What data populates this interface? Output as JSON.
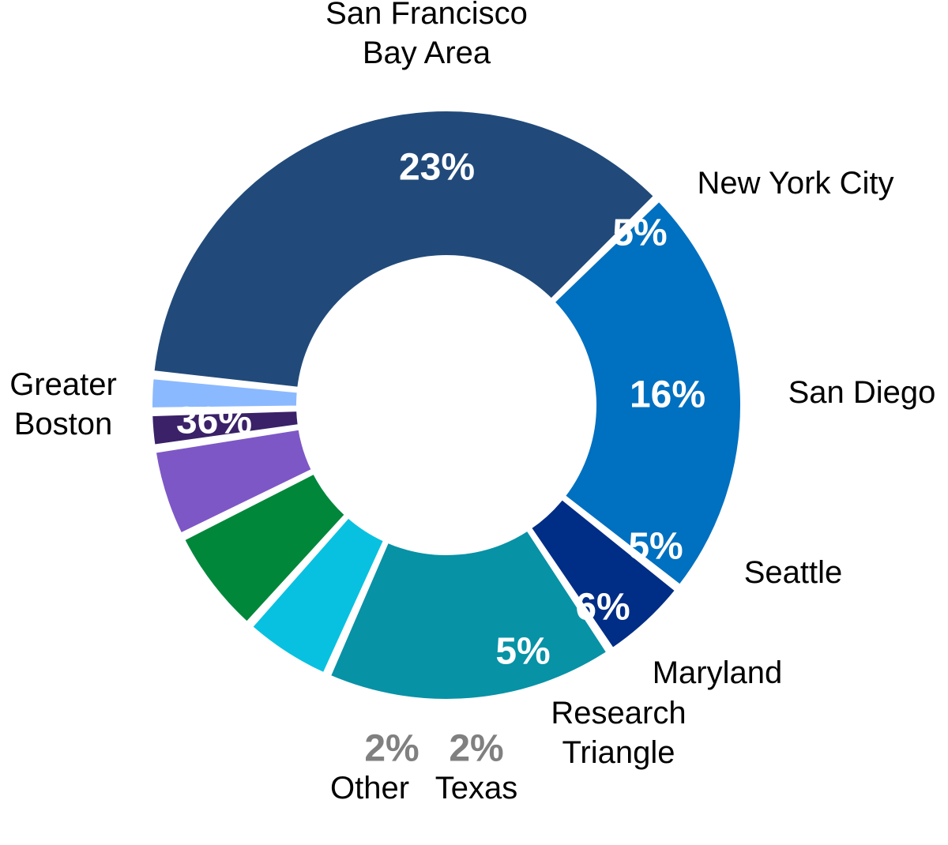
{
  "chart_data": {
    "type": "pie",
    "variant": "donut",
    "categories": [
      "San Francisco Bay Area",
      "New York City",
      "San Diego",
      "Seattle",
      "Maryland",
      "Research Triangle",
      "Texas",
      "Other",
      "Greater Boston"
    ],
    "values": [
      23,
      5,
      16,
      5,
      6,
      5,
      2,
      2,
      36
    ],
    "value_labels": [
      "23%",
      "5%",
      "16%",
      "5%",
      "6%",
      "5%",
      "2%",
      "2%",
      "36%"
    ],
    "label_lines": [
      [
        "San Francisco",
        "Bay Area"
      ],
      [
        "New York City"
      ],
      [
        "San Diego"
      ],
      [
        "Seattle"
      ],
      [
        "Maryland"
      ],
      [
        "Research",
        "Triangle"
      ],
      [
        "Texas"
      ],
      [
        "Other"
      ],
      [
        "Greater",
        "Boston"
      ]
    ],
    "colors": [
      "#0070C0",
      "#002D86",
      "#0792A6",
      "#08C1E0",
      "#00873A",
      "#7E57C6",
      "#3A2168",
      "#8BB9FF",
      "#214A7A"
    ],
    "value_label_colors": [
      "#FFFFFF",
      "#FFFFFF",
      "#FFFFFF",
      "#FFFFFF",
      "#FFFFFF",
      "#FFFFFF",
      "#808080",
      "#808080",
      "#FFFFFF"
    ],
    "legend": "none"
  }
}
